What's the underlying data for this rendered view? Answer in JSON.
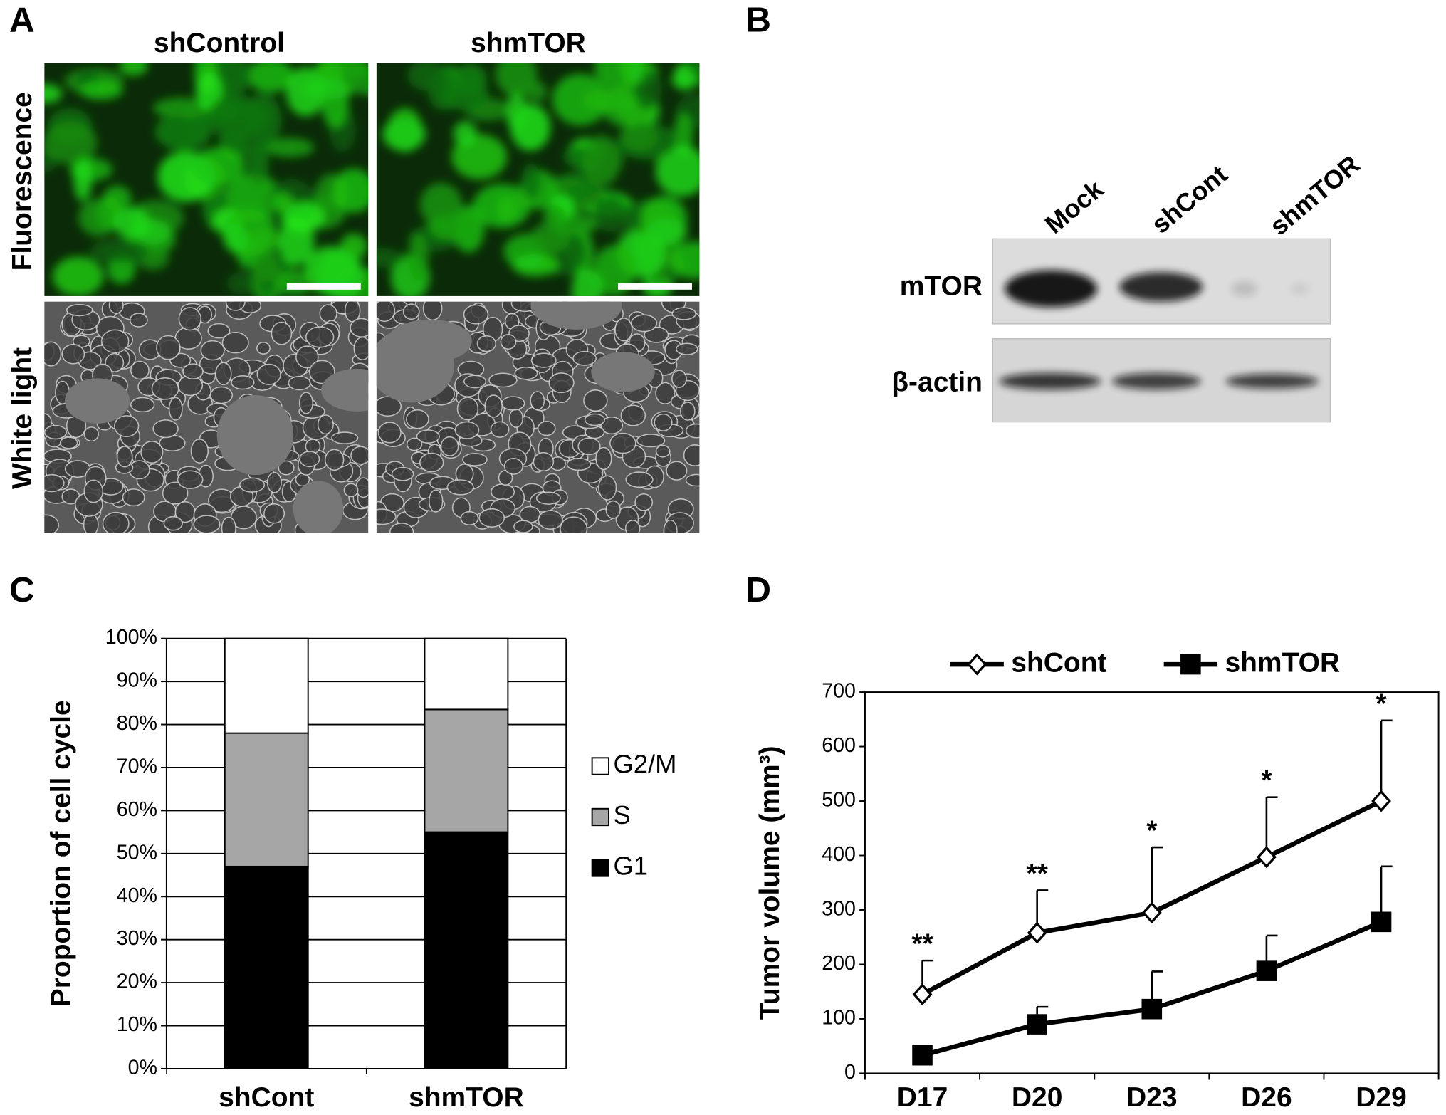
{
  "panel_a": {
    "panel_label": "A",
    "columns": [
      "shControl",
      "shmTOR"
    ],
    "rows": [
      "Fluorescence",
      "White light"
    ]
  },
  "panel_b": {
    "panel_label": "B",
    "lanes": [
      "Mock",
      "shCont",
      "shmTOR"
    ],
    "rows": [
      "mTOR",
      "β-actin"
    ]
  },
  "chart_data": [
    {
      "type": "bar",
      "stacked": true,
      "panel_label": "C",
      "y_label": "Proportion of cell cycle",
      "categories": [
        "shCont",
        "shmTOR"
      ],
      "series": [
        {
          "name": "G1",
          "color": "#000000",
          "values": [
            47,
            55
          ]
        },
        {
          "name": "S",
          "color": "#a6a6a6",
          "values": [
            31,
            28.5
          ]
        },
        {
          "name": "G2/M",
          "color": "#ffffff",
          "values": [
            22,
            16.5
          ]
        }
      ],
      "ylim": [
        0,
        100
      ],
      "yticks": [
        {
          "value": 0,
          "label": "0%"
        },
        {
          "value": 10,
          "label": "10%"
        },
        {
          "value": 20,
          "label": "20%"
        },
        {
          "value": 30,
          "label": "30%"
        },
        {
          "value": 40,
          "label": "40%"
        },
        {
          "value": 50,
          "label": "50%"
        },
        {
          "value": 60,
          "label": "60%"
        },
        {
          "value": 70,
          "label": "70%"
        },
        {
          "value": 80,
          "label": "80%"
        },
        {
          "value": 90,
          "label": "90%"
        },
        {
          "value": 100,
          "label": "100%"
        }
      ],
      "grid": true,
      "legend": "right"
    },
    {
      "type": "line",
      "panel_label": "D",
      "y_label": "Tumor volume (mm³)",
      "x": [
        "D17",
        "D20",
        "D23",
        "D26",
        "D29"
      ],
      "series": [
        {
          "name": "shCont",
          "color": "#000000",
          "marker": "open-diamond",
          "values": [
            145,
            258,
            295,
            397,
            500
          ],
          "errors": [
            62,
            78,
            120,
            110,
            148
          ]
        },
        {
          "name": "shmTOR",
          "color": "#000000",
          "marker": "filled-square",
          "values": [
            33,
            90,
            118,
            188,
            278
          ],
          "errors": [
            null,
            32,
            69,
            65,
            102
          ]
        }
      ],
      "annotations": [
        "**",
        "**",
        "*",
        "*",
        "*"
      ],
      "ylim": [
        0,
        700
      ],
      "yticks": [
        0,
        100,
        200,
        300,
        400,
        500,
        600,
        700
      ],
      "legend": "top"
    }
  ]
}
